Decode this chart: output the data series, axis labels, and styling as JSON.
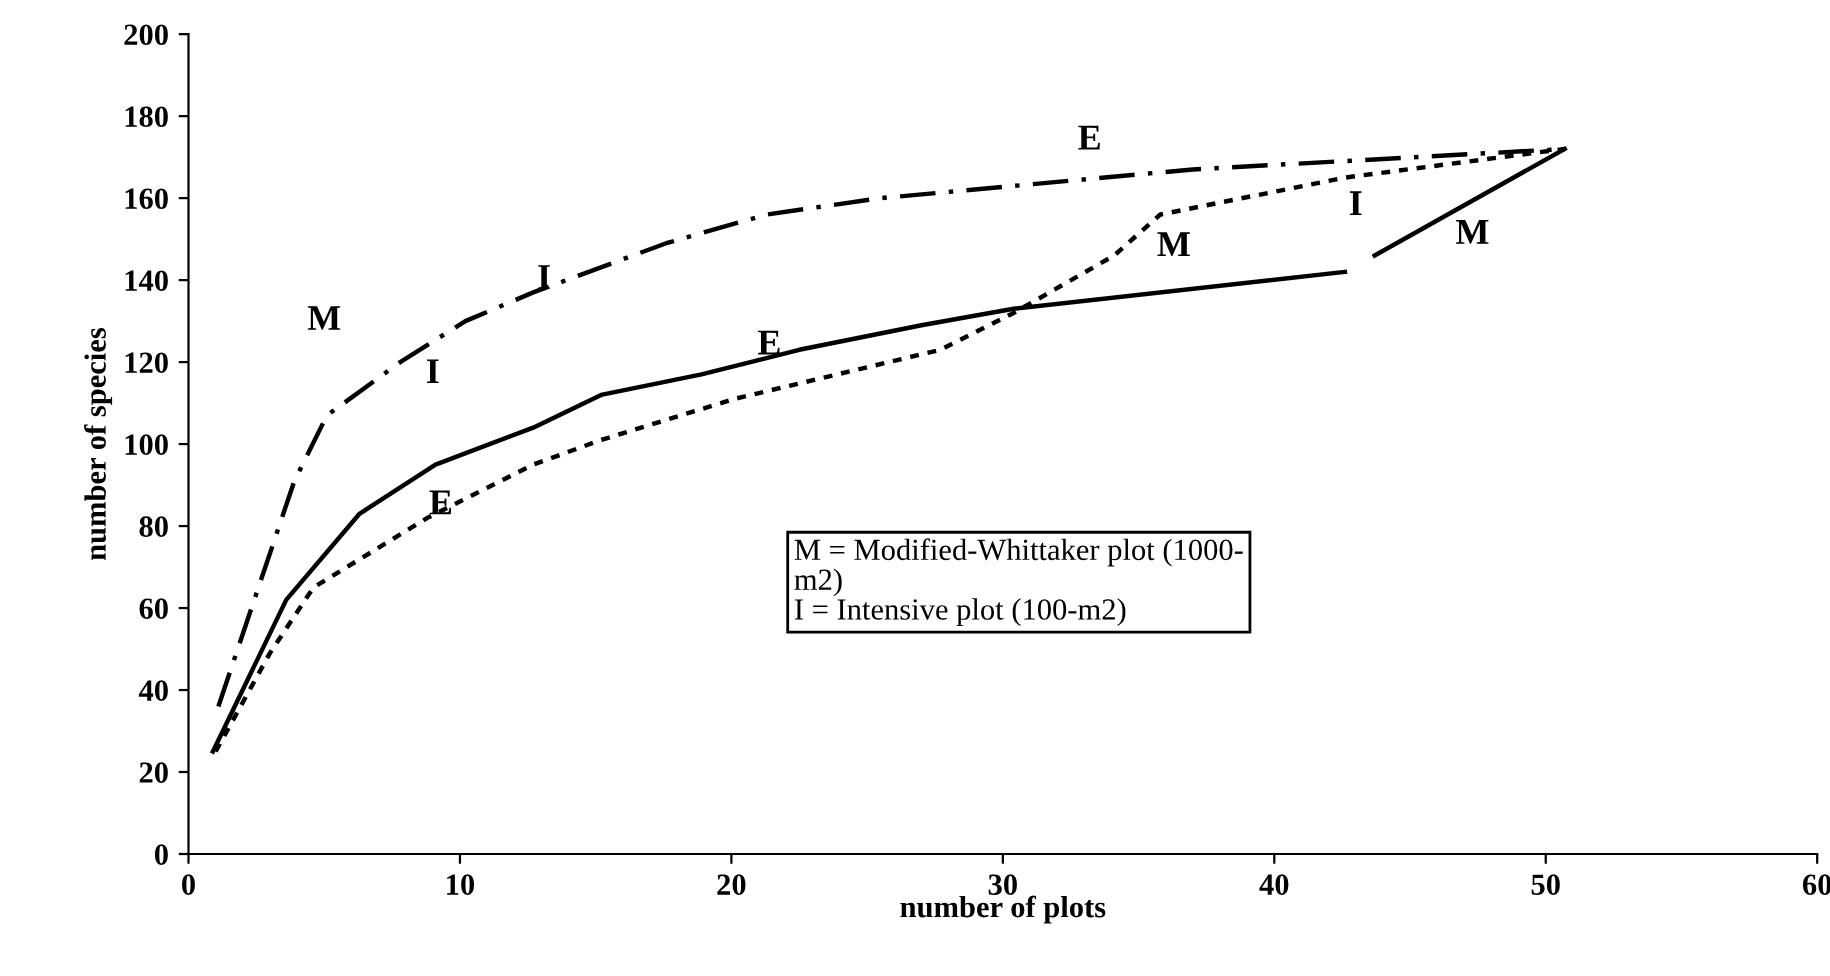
{
  "chart_data": {
    "type": "line",
    "xlabel": "number of plots",
    "ylabel": "number of species",
    "xlim": [
      0,
      60
    ],
    "xticks": [
      0,
      10,
      20,
      30,
      40,
      50,
      60
    ],
    "ylim": [
      0,
      200
    ],
    "yticks": [
      0,
      20,
      40,
      60,
      80,
      100,
      120,
      140,
      160,
      180,
      200
    ],
    "grid": false,
    "legend": false,
    "marker": "none",
    "series": [
      {
        "color": "#000000",
        "line_style": "dashed",
        "x": [
          1.1,
          3.9,
          5.1,
          7.8,
          10.2,
          12.7,
          17.6,
          21.3,
          25.5,
          37,
          50.7
        ],
        "values": [
          36,
          91,
          107,
          120,
          130,
          137,
          149,
          156,
          160,
          167,
          172
        ]
      },
      {
        "color": "#000000",
        "line_style": "solid",
        "x": [
          0.9,
          3.6,
          6.3,
          9.1,
          12.7,
          15.2,
          18.9,
          22.5,
          27,
          30.4,
          42.6,
          43.2,
          43.7,
          50.7
        ],
        "values": [
          25,
          62,
          83,
          95,
          104,
          112,
          117,
          123,
          129,
          133,
          142,
          null,
          146,
          172
        ]
      },
      {
        "color": "#000000",
        "line_style": "dotted",
        "x": [
          1,
          3,
          4.6,
          8.8,
          12.7,
          15.2,
          20.1,
          27.7,
          30.4,
          34.1,
          35.8,
          42.6,
          50.7
        ],
        "values": [
          25,
          49,
          65,
          82,
          95,
          101,
          111,
          123,
          132,
          146,
          156,
          165,
          172
        ]
      }
    ],
    "annotations": [
      "M",
      "I",
      "E",
      "I",
      "E",
      "E",
      "M",
      "I",
      "M",
      "M = Modified-Whittaker plot (1000-\nm2)\nI = Intensive plot (100-m2)"
    ]
  }
}
